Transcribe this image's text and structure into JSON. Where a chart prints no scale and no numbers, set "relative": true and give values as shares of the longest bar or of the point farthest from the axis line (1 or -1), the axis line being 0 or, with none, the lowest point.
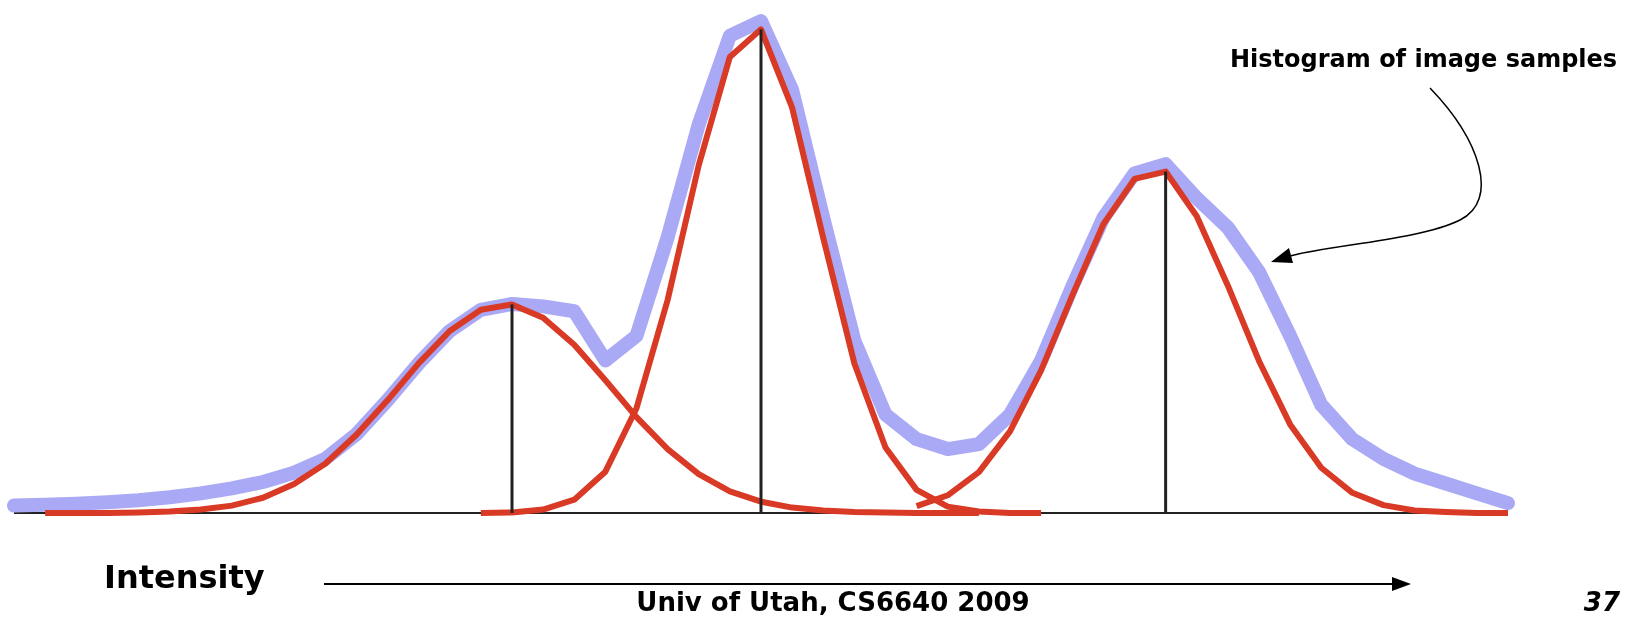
{
  "chart_data": {
    "type": "line",
    "relative": true,
    "xlabel": "Intensity",
    "annotations": [
      "Histogram of image samples",
      "Univ of Utah, CS6640 2009",
      "37"
    ],
    "categories": [
      null,
      null,
      null,
      null,
      null,
      null,
      null,
      null,
      null,
      null,
      null,
      null,
      null,
      null,
      null,
      null,
      null,
      null,
      null,
      null,
      null,
      null,
      null,
      null,
      null,
      null,
      null,
      null,
      null,
      null,
      null,
      null,
      null,
      null,
      null,
      null,
      null,
      null,
      null,
      null,
      null,
      null,
      null,
      null,
      null,
      null,
      null,
      null,
      null
    ],
    "series": [
      {
        "color": "#a9a9f5",
        "values": [
          0.015,
          0.017,
          0.019,
          0.022,
          0.026,
          0.032,
          0.04,
          0.05,
          0.063,
          0.082,
          0.11,
          0.16,
          0.229,
          0.304,
          0.37,
          0.413,
          0.425,
          0.42,
          0.41,
          0.31,
          0.36,
          0.56,
          0.79,
          0.97,
          1,
          0.86,
          0.6,
          0.35,
          0.2,
          0.15,
          0.13,
          0.14,
          0.2,
          0.31,
          0.46,
          0.6,
          0.69,
          0.709,
          0.64,
          0.58,
          0.49,
          0.36,
          0.22,
          0.15,
          0.11,
          0.08,
          0.06,
          0.04,
          0.02
        ]
      },
      {
        "color": "#d93a25",
        "values": [
          null,
          0,
          0,
          0,
          0.001,
          0.003,
          0.007,
          0.015,
          0.031,
          0.059,
          0.1,
          0.159,
          0.229,
          0.304,
          0.37,
          0.413,
          0.424,
          0.397,
          0.342,
          0.27,
          0.195,
          0.13,
          0.079,
          0.044,
          0.023,
          0.011,
          0.005,
          0.002,
          0.001,
          0,
          0,
          0,
          null,
          null,
          null,
          null,
          null,
          null,
          null,
          null,
          null,
          null,
          null,
          null,
          null,
          null,
          null,
          null,
          null
        ]
      },
      {
        "color": "#d93a25",
        "values": [
          null,
          null,
          null,
          null,
          null,
          null,
          null,
          null,
          null,
          null,
          null,
          null,
          null,
          null,
          null,
          0,
          0.001,
          0.007,
          0.027,
          0.084,
          0.213,
          0.433,
          0.707,
          0.927,
          0.983,
          0.824,
          0.559,
          0.304,
          0.133,
          0.047,
          0.013,
          0.003,
          0,
          0,
          null,
          null,
          null,
          null,
          null,
          null,
          null,
          null,
          null,
          null,
          null,
          null,
          null,
          null,
          null
        ]
      },
      {
        "color": "#d93a25",
        "values": [
          null,
          null,
          null,
          null,
          null,
          null,
          null,
          null,
          null,
          null,
          null,
          null,
          null,
          null,
          null,
          null,
          null,
          null,
          null,
          null,
          null,
          null,
          null,
          null,
          null,
          null,
          null,
          null,
          null,
          0.014,
          0.036,
          0.083,
          0.166,
          0.29,
          0.442,
          0.587,
          0.679,
          0.694,
          0.603,
          0.462,
          0.309,
          0.18,
          0.092,
          0.041,
          0.016,
          0.005,
          0.002,
          0,
          0
        ]
      }
    ]
  }
}
